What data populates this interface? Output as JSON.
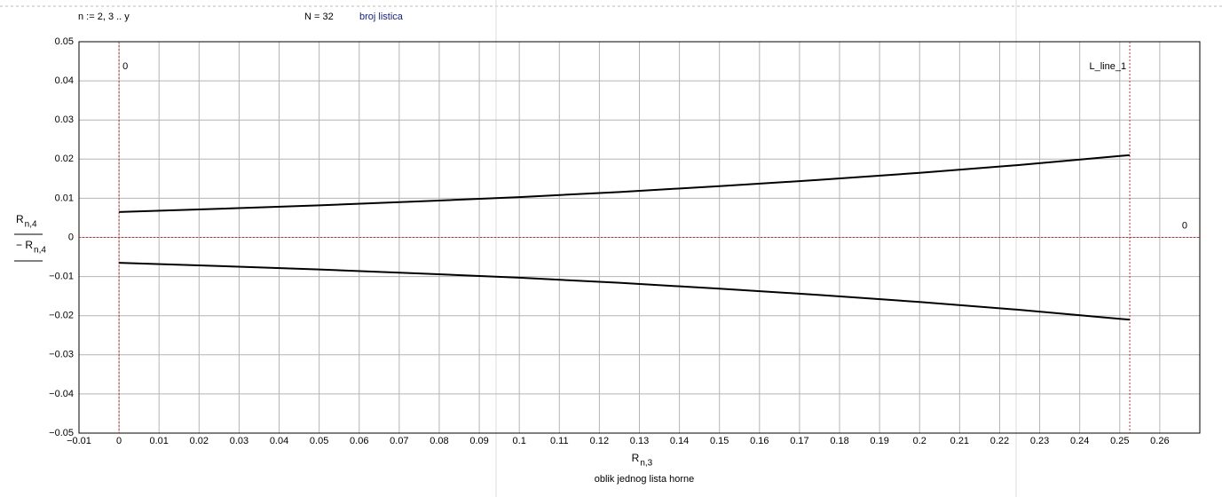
{
  "header": {
    "definition": "n := 2, 3 .. y",
    "count": "N = 32",
    "note": "broj listica"
  },
  "chart_data": {
    "type": "line",
    "x": [
      0,
      0.025,
      0.05,
      0.075,
      0.1,
      0.125,
      0.15,
      0.175,
      0.2,
      0.225,
      0.25,
      0.2525
    ],
    "series": [
      {
        "name": "R n,4",
        "color": "#000000",
        "values": [
          0.0065,
          0.0073,
          0.0082,
          0.0092,
          0.0103,
          0.0116,
          0.0131,
          0.0147,
          0.0165,
          0.0185,
          0.0208,
          0.021
        ]
      },
      {
        "name": "- R n,4",
        "color": "#000000",
        "values": [
          -0.0065,
          -0.0073,
          -0.0082,
          -0.0092,
          -0.0103,
          -0.0116,
          -0.0131,
          -0.0147,
          -0.0165,
          -0.0185,
          -0.0208,
          -0.021
        ]
      }
    ],
    "xlim": [
      -0.01,
      0.27
    ],
    "xticks": [
      {
        "value": -0.01,
        "label": "−0.01"
      },
      0,
      0.01,
      0.02,
      0.03,
      0.04,
      0.05,
      0.06,
      0.07,
      0.08,
      0.09,
      0.1,
      0.11,
      0.12,
      0.13,
      0.14,
      0.15,
      0.16,
      0.17,
      0.18,
      0.19,
      0.2,
      0.21,
      0.22,
      0.23,
      0.24,
      0.25,
      0.26
    ],
    "ylim": [
      -0.05,
      0.05
    ],
    "yticks": [
      {
        "value": -0.05,
        "label": "−0.05"
      },
      {
        "value": -0.04,
        "label": "−0.04"
      },
      {
        "value": -0.03,
        "label": "−0.03"
      },
      {
        "value": -0.02,
        "label": "−0.02"
      },
      {
        "value": -0.01,
        "label": "−0.01"
      },
      0,
      0.01,
      0.02,
      0.03,
      0.04,
      0.05
    ],
    "grid": true,
    "vmarkers": [
      {
        "value": 0,
        "label": "0"
      },
      {
        "value": 0.2525,
        "label": "L_line_1"
      }
    ],
    "hmarkers": [
      {
        "value": 0,
        "label": "0"
      }
    ],
    "marker_color": "#c03030",
    "xlabel": {
      "main": "R",
      "sub": "n,3"
    },
    "ylabels": [
      {
        "main": "R",
        "sub": "n,4"
      },
      {
        "main": "− R",
        "sub": "n,4"
      }
    ],
    "caption": "oblik jednog lista horne"
  }
}
